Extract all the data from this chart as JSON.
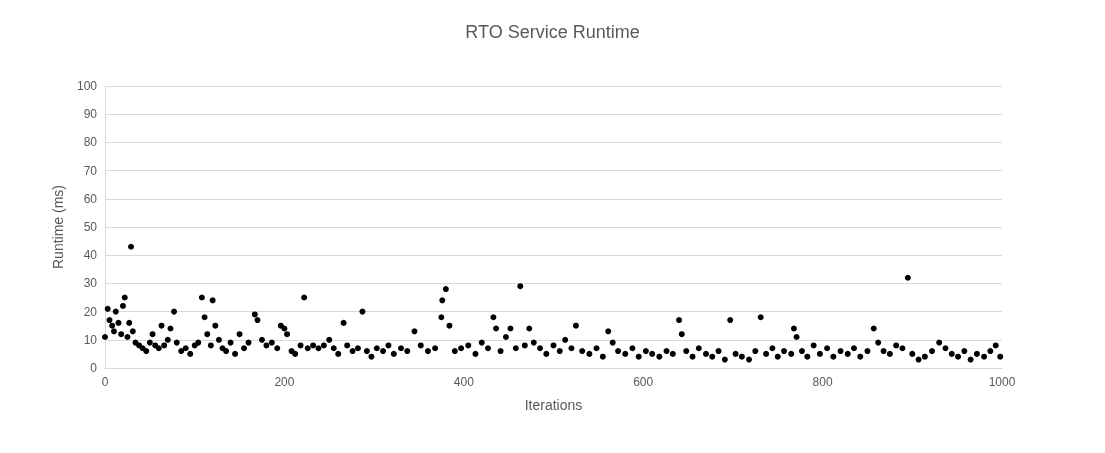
{
  "chart_data": {
    "type": "scatter",
    "title": "RTO Service Runtime",
    "xlabel": "Iterations",
    "ylabel": "Runtime (ms)",
    "x": [
      0,
      3,
      5,
      8,
      10,
      12,
      15,
      18,
      20,
      22,
      25,
      27,
      29,
      31,
      34,
      38,
      42,
      46,
      50,
      53,
      56,
      60,
      63,
      66,
      70,
      73,
      77,
      80,
      85,
      90,
      95,
      100,
      104,
      108,
      111,
      114,
      118,
      120,
      123,
      127,
      131,
      135,
      140,
      145,
      150,
      155,
      160,
      167,
      170,
      175,
      180,
      186,
      192,
      196,
      200,
      203,
      208,
      212,
      218,
      222,
      226,
      232,
      238,
      244,
      250,
      255,
      260,
      266,
      270,
      276,
      282,
      287,
      292,
      297,
      303,
      310,
      316,
      322,
      330,
      337,
      345,
      352,
      360,
      368,
      375,
      376,
      380,
      384,
      390,
      397,
      405,
      413,
      420,
      427,
      433,
      436,
      441,
      447,
      452,
      458,
      463,
      468,
      473,
      478,
      485,
      492,
      500,
      507,
      513,
      520,
      525,
      532,
      540,
      548,
      555,
      561,
      566,
      572,
      580,
      588,
      595,
      603,
      610,
      618,
      626,
      633,
      640,
      643,
      648,
      655,
      662,
      670,
      677,
      684,
      691,
      697,
      703,
      710,
      718,
      725,
      731,
      737,
      744,
      750,
      757,
      765,
      768,
      771,
      777,
      783,
      790,
      797,
      805,
      812,
      820,
      828,
      835,
      842,
      850,
      857,
      862,
      868,
      875,
      882,
      889,
      895,
      900,
      907,
      914,
      922,
      930,
      937,
      944,
      951,
      958,
      965,
      972,
      980,
      987,
      993,
      998
    ],
    "values": [
      11,
      21,
      17,
      15,
      13,
      20,
      16,
      12,
      22,
      25,
      11,
      16,
      43,
      13,
      9,
      8,
      7,
      6,
      9,
      12,
      8,
      7,
      15,
      8,
      10,
      14,
      20,
      9,
      6,
      7,
      5,
      8,
      9,
      25,
      18,
      12,
      8,
      24,
      15,
      10,
      7,
      6,
      9,
      5,
      12,
      7,
      9,
      19,
      17,
      10,
      8,
      9,
      7,
      15,
      14,
      12,
      6,
      5,
      8,
      25,
      7,
      8,
      7,
      8,
      10,
      7,
      5,
      16,
      8,
      6,
      7,
      20,
      6,
      4,
      7,
      6,
      8,
      5,
      7,
      6,
      13,
      8,
      6,
      7,
      18,
      24,
      28,
      15,
      6,
      7,
      8,
      5,
      9,
      7,
      18,
      14,
      6,
      11,
      14,
      7,
      29,
      8,
      14,
      9,
      7,
      5,
      8,
      6,
      10,
      7,
      15,
      6,
      5,
      7,
      4,
      13,
      9,
      6,
      5,
      7,
      4,
      6,
      5,
      4,
      6,
      5,
      17,
      12,
      6,
      4,
      7,
      5,
      4,
      6,
      3,
      17,
      5,
      4,
      3,
      6,
      18,
      5,
      7,
      4,
      6,
      5,
      14,
      11,
      6,
      4,
      8,
      5,
      7,
      4,
      6,
      5,
      7,
      4,
      6,
      14,
      9,
      6,
      5,
      8,
      7,
      32,
      5,
      3,
      4,
      6,
      9,
      7,
      5,
      4,
      6,
      3,
      5,
      4,
      6,
      8,
      4
    ],
    "color": "#000000",
    "marker": "circle",
    "xlim": [
      0,
      1000
    ],
    "xticks": [
      0,
      200,
      400,
      600,
      800,
      1000
    ],
    "ylim": [
      0,
      100
    ],
    "yticks": [
      0,
      10,
      20,
      30,
      40,
      50,
      60,
      70,
      80,
      90,
      100
    ],
    "grid": "y"
  }
}
